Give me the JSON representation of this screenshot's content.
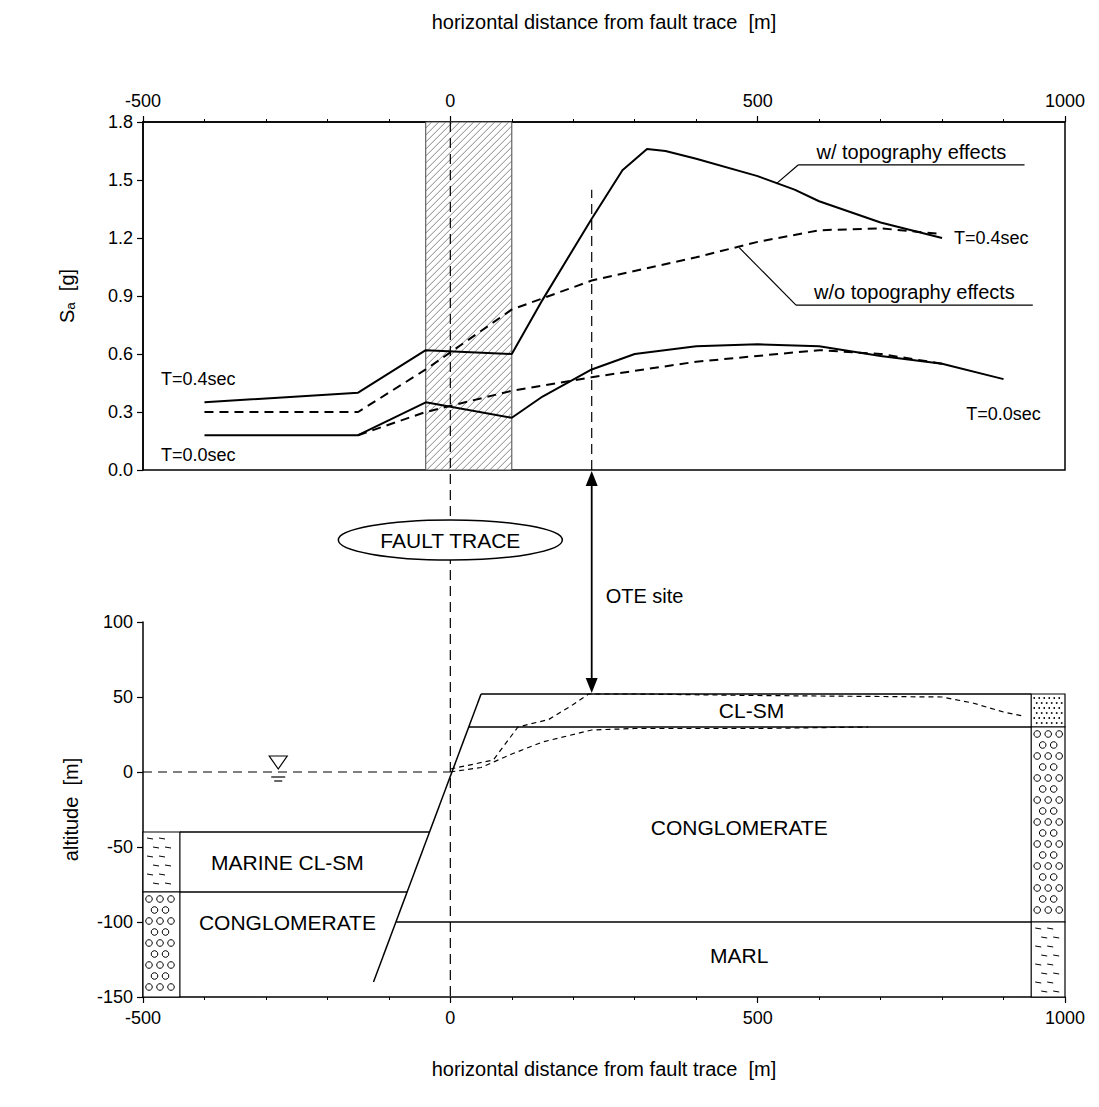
{
  "chart_data": [
    {
      "type": "line",
      "x_label": "horizontal distance from fault trace  [m]",
      "y_label": "Sₐ  [g]",
      "xlim": [
        -500,
        1000
      ],
      "xticks": [
        -500,
        0,
        500,
        1000
      ],
      "ylim": [
        0,
        1.8
      ],
      "yticks": [
        {
          "value": 0,
          "label": "0.0"
        },
        0.3,
        0.6,
        0.9,
        1.2,
        1.5,
        1.8
      ],
      "grid": false,
      "series": [
        {
          "color": "#000000",
          "line_style": "solid",
          "x": [
            -400,
            -150,
            -40,
            100,
            150,
            230,
            280,
            320,
            350,
            400,
            500,
            560,
            600,
            700,
            800
          ],
          "values": [
            0.35,
            0.4,
            0.62,
            0.6,
            0.88,
            1.3,
            1.55,
            1.66,
            1.65,
            1.61,
            1.52,
            1.45,
            1.39,
            1.28,
            1.2
          ]
        },
        {
          "color": "#000000",
          "line_style": "dashed",
          "x": [
            -400,
            -150,
            -40,
            100,
            230,
            400,
            500,
            600,
            700,
            800
          ],
          "values": [
            0.3,
            0.3,
            0.52,
            0.83,
            0.98,
            1.1,
            1.18,
            1.24,
            1.25,
            1.22
          ]
        },
        {
          "color": "#000000",
          "line_style": "solid",
          "x": [
            -400,
            -150,
            -40,
            100,
            150,
            230,
            300,
            400,
            500,
            600,
            700,
            800,
            900
          ],
          "values": [
            0.18,
            0.18,
            0.35,
            0.27,
            0.38,
            0.52,
            0.6,
            0.64,
            0.65,
            0.64,
            0.59,
            0.55,
            0.47
          ]
        },
        {
          "color": "#000000",
          "line_style": "dashed",
          "x": [
            -150,
            -40,
            100,
            230,
            400,
            600,
            700,
            800
          ],
          "values": [
            0.18,
            0.3,
            0.41,
            0.48,
            0.56,
            0.62,
            0.6,
            0.55
          ]
        }
      ],
      "annotations": [
        {
          "text": "T=0.4sec",
          "x": -410,
          "y": 0.47
        },
        {
          "text": "T=0.0sec",
          "x": -410,
          "y": 0.08
        },
        {
          "text": "T=0.4sec",
          "x": 880,
          "y": 1.2
        },
        {
          "text": "T=0.0sec",
          "x": 900,
          "y": 0.29
        },
        {
          "text": "w/ topography effects",
          "x": 750,
          "y": 1.645,
          "pointer": [
            530,
            1.48
          ]
        },
        {
          "text": "w/o topography effects",
          "x": 755,
          "y": 0.92,
          "pointer": [
            470,
            1.15
          ]
        }
      ],
      "fault_zone": [
        -40,
        100
      ],
      "fault_trace": {
        "x": 0,
        "label": "FAULT TRACE"
      },
      "site": {
        "x": 230,
        "label": "OTE site",
        "guide": [
          0,
          1.45
        ],
        "altitude": 52
      }
    },
    {
      "type": "line",
      "x_label": "horizontal distance from fault trace  [m]",
      "y_label": "altitude  [m]",
      "xlim": [
        -500,
        1000
      ],
      "xticks": [
        -500,
        0,
        500,
        1000
      ],
      "ylim": [
        -150,
        100
      ],
      "yticks": [
        -150,
        -100,
        -50,
        0,
        50,
        100
      ],
      "grid": false,
      "series": [
        {
          "color": "#000000",
          "line_style": "solid",
          "x": [
            -125,
            50
          ],
          "values": [
            -140,
            52
          ]
        },
        {
          "color": "#000000",
          "line_style": "solid",
          "x": [
            50,
            945
          ],
          "values": [
            52,
            52
          ]
        },
        {
          "color": "#000000",
          "line_style": "solid",
          "x": [
            30,
            945
          ],
          "values": [
            30,
            30
          ]
        },
        {
          "color": "#000000",
          "line_style": "solid",
          "x": [
            -88,
            945
          ],
          "values": [
            -100,
            -100
          ]
        },
        {
          "color": "#000000",
          "line_style": "solid",
          "x": [
            -440,
            -34
          ],
          "values": [
            -40,
            -40
          ]
        },
        {
          "color": "#000000",
          "line_style": "solid",
          "x": [
            -440,
            -70
          ],
          "values": [
            -80,
            -80
          ]
        },
        {
          "color": "#000000",
          "line_style": "dashed",
          "x": [
            0,
            70,
            110,
            160,
            200,
            225,
            300,
            500,
            800,
            850,
            900,
            935
          ],
          "values": [
            2,
            8,
            30,
            35,
            45,
            52,
            52,
            51,
            50,
            46,
            40,
            37
          ]
        },
        {
          "color": "#000000",
          "line_style": "dashed",
          "x": [
            0,
            50,
            100,
            150,
            230,
            300,
            500,
            680
          ],
          "values": [
            0,
            3,
            12,
            20,
            28,
            29,
            29,
            30
          ]
        }
      ],
      "layers": [
        {
          "text": "CL-SM",
          "x": 490,
          "y": 41
        },
        {
          "text": "CONGLOMERATE",
          "x": 470,
          "y": -37
        },
        {
          "text": "MARL",
          "x": 470,
          "y": -122
        },
        {
          "text": "MARINE CL-SM",
          "x": -265,
          "y": -60
        },
        {
          "text": "CONGLOMERATE",
          "x": -265,
          "y": -100
        }
      ],
      "water_table": {
        "level": 0,
        "x": [
          -500,
          0
        ],
        "marker_x": -280,
        "line_style": "dashed"
      },
      "columns": [
        {
          "x": [
            -500,
            -440
          ],
          "layers": [
            {
              "y": [
                -40,
                -80
              ],
              "marker": "dash"
            },
            {
              "y": [
                -80,
                -150
              ],
              "marker": "circle"
            }
          ]
        },
        {
          "x": [
            945,
            1000
          ],
          "layers": [
            {
              "y": [
                52,
                30
              ],
              "marker": "dot"
            },
            {
              "y": [
                30,
                -100
              ],
              "marker": "circle"
            },
            {
              "y": [
                -100,
                -150
              ],
              "marker": "dash"
            }
          ]
        }
      ]
    }
  ]
}
